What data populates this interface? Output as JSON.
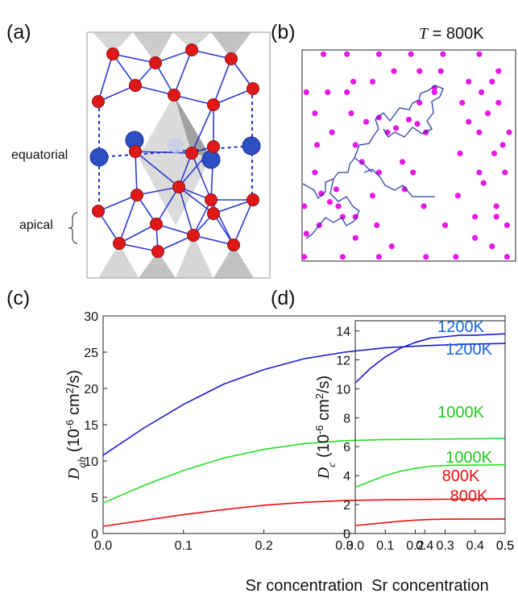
{
  "figure": {
    "panel_labels": [
      "(a)",
      "(b)",
      "(c)",
      "(d)"
    ]
  },
  "structure": {
    "labels": [
      "equatorial",
      "apical"
    ]
  },
  "chart_data": [
    {
      "type": "scatter",
      "annotation_parts": [
        {
          "text": "T",
          "style": "italic"
        },
        {
          "text": " = 800K"
        }
      ],
      "color": "#e619e6",
      "xlim": [
        0,
        100
      ],
      "ylim": [
        0,
        100
      ],
      "x": [
        10,
        21,
        36,
        51,
        66,
        83,
        43,
        55,
        65,
        92,
        24,
        33,
        78,
        89,
        2,
        12,
        21,
        62,
        84,
        55,
        75,
        92,
        6,
        23,
        87,
        30,
        78,
        14,
        40,
        58,
        83,
        97,
        7,
        25,
        94,
        90,
        74,
        28,
        47,
        6,
        36,
        52,
        83,
        95,
        85,
        16,
        48,
        33,
        73,
        1,
        57,
        91,
        19,
        81,
        91,
        8,
        35,
        67,
        96,
        25,
        81,
        42,
        89,
        1,
        19,
        36,
        58,
        72,
        96,
        36,
        44,
        54,
        50,
        62,
        9,
        17,
        25,
        2,
        13
      ],
      "y": [
        98,
        98,
        98,
        98,
        98,
        98,
        90,
        90,
        90,
        90,
        85,
        85,
        85,
        85,
        80,
        80,
        80,
        80,
        80,
        75,
        75,
        75,
        70,
        70,
        70,
        66,
        66,
        61,
        61,
        61,
        61,
        61,
        55,
        55,
        55,
        51,
        51,
        47,
        47,
        42,
        42,
        42,
        42,
        42,
        37,
        34,
        34,
        31,
        31,
        26,
        26,
        26,
        21,
        21,
        21,
        17,
        17,
        17,
        17,
        11,
        11,
        7,
        7,
        2,
        2,
        2,
        2,
        2,
        2,
        68,
        63,
        65,
        67,
        82,
        32,
        26,
        21,
        13,
        28
      ]
    },
    {
      "type": "line",
      "xlabel": "Sr concentration",
      "ylabel_parts": [
        {
          "text": "D",
          "style": "italic"
        },
        {
          "text": "ab",
          "style": "sub"
        },
        {
          "text": " (10"
        },
        {
          "text": "-6",
          "style": "sup"
        },
        {
          "text": " cm"
        },
        {
          "text": "2",
          "style": "sup"
        },
        {
          "text": "/s)"
        }
      ],
      "x": [
        0,
        0.05,
        0.1,
        0.15,
        0.2,
        0.25,
        0.3,
        0.35,
        0.4,
        0.45,
        0.5
      ],
      "xlim": [
        0,
        0.5
      ],
      "xticks": [
        {
          "value": 0,
          "label": "0.0"
        },
        0.1,
        0.2,
        0.3,
        0.4,
        0.5
      ],
      "ylim": [
        0,
        30
      ],
      "yticks": [
        0,
        5,
        10,
        15,
        20,
        25,
        30
      ],
      "series": [
        {
          "name": "1200K",
          "color": "#1a1ad0",
          "label_color": "#1565e0",
          "values": [
            10.8,
            14.5,
            17.8,
            20.6,
            22.6,
            24.1,
            25.0,
            25.6,
            25.9,
            26.1,
            26.2
          ]
        },
        {
          "name": "1000K",
          "color": "#22e022",
          "label_color": "#22c822",
          "values": [
            4.2,
            6.6,
            8.7,
            10.4,
            11.6,
            12.4,
            12.8,
            12.95,
            13.0,
            13.05,
            13.1
          ]
        },
        {
          "name": "800K",
          "color": "#e81010",
          "label_color": "#e81010",
          "values": [
            1.0,
            1.8,
            2.6,
            3.3,
            3.9,
            4.3,
            4.55,
            4.65,
            4.7,
            4.75,
            4.8
          ]
        }
      ]
    },
    {
      "type": "line",
      "xlabel": "Sr concentration",
      "ylabel_parts": [
        {
          "text": "D",
          "style": "italic"
        },
        {
          "text": "c",
          "style": "sub"
        },
        {
          "text": " (10"
        },
        {
          "text": "-6",
          "style": "sup"
        },
        {
          "text": " cm"
        },
        {
          "text": "2",
          "style": "sup"
        },
        {
          "text": "/s)"
        }
      ],
      "x": [
        0,
        0.05,
        0.1,
        0.15,
        0.2,
        0.25,
        0.3,
        0.35,
        0.4,
        0.45,
        0.5
      ],
      "xlim": [
        0,
        0.5
      ],
      "xticks": [
        {
          "value": 0,
          "label": "0.0"
        },
        0.1,
        0.2,
        0.3,
        0.4,
        0.5
      ],
      "ylim": [
        0,
        14.7
      ],
      "yticks": [
        0,
        2,
        4,
        6,
        8,
        10,
        12,
        14
      ],
      "series": [
        {
          "name": "1200K",
          "color": "#1a1ad0",
          "label_color": "#1565e0",
          "values": [
            10.4,
            11.4,
            12.2,
            12.8,
            13.2,
            13.5,
            13.6,
            13.7,
            13.7,
            13.75,
            13.8
          ]
        },
        {
          "name": "1000K",
          "color": "#22e022",
          "label_color": "#22c822",
          "values": [
            3.2,
            3.6,
            4.0,
            4.3,
            4.5,
            4.65,
            4.7,
            4.72,
            4.73,
            4.74,
            4.75
          ]
        },
        {
          "name": "800K",
          "color": "#e81010",
          "label_color": "#e81010",
          "values": [
            0.55,
            0.65,
            0.75,
            0.85,
            0.92,
            0.97,
            0.99,
            1.0,
            1.0,
            1.0,
            1.0
          ]
        }
      ]
    }
  ]
}
